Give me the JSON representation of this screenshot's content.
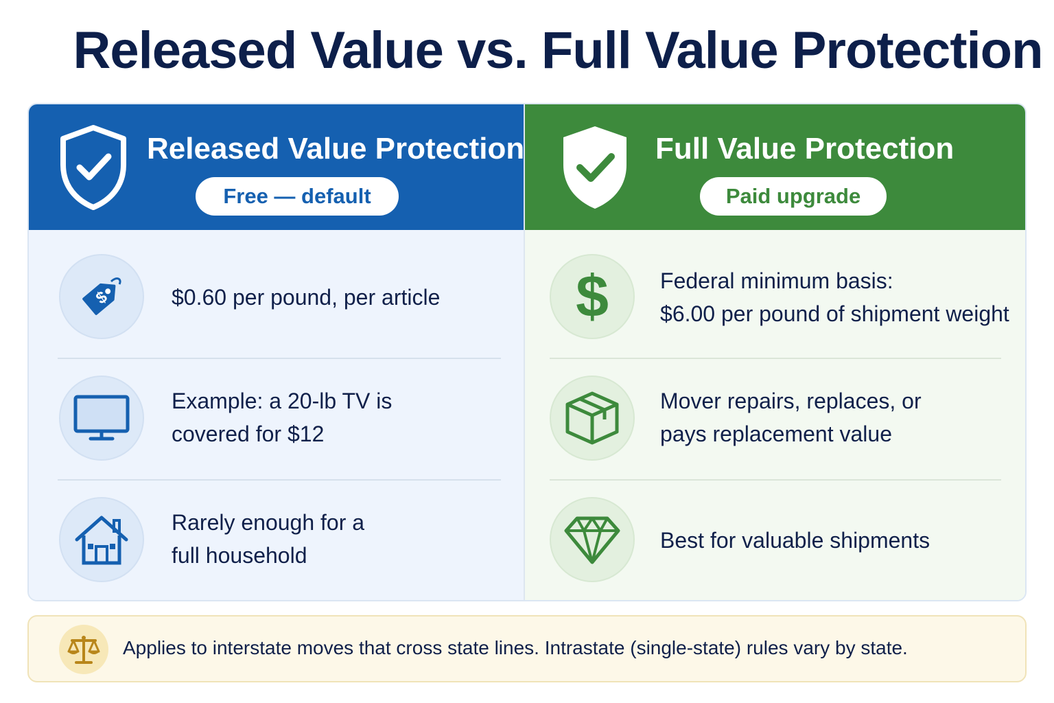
{
  "title": "Released Value vs. Full Value Protection",
  "colors": {
    "released_accent": "#1560b0",
    "full_accent": "#3d8a3c",
    "note_background": "#fdf8e8"
  },
  "released": {
    "title": "Released Value Protection",
    "badge": "Free — default",
    "icon": "shield-check-icon",
    "rows": [
      {
        "icon": "price-tag-icon",
        "text": "$0.60 per pound, per article"
      },
      {
        "icon": "tv-icon",
        "text_line1": "Example: a 20-lb TV is",
        "text_line2": "covered for $12"
      },
      {
        "icon": "house-icon",
        "text_line1": "Rarely enough for a",
        "text_line2": "full household"
      }
    ]
  },
  "full": {
    "title": "Full Value Protection",
    "badge": "Paid upgrade",
    "icon": "shield-check-icon",
    "rows": [
      {
        "icon": "dollar-icon",
        "text_line1": "Federal minimum basis:",
        "text_line2": "$6.00 per pound of shipment weight"
      },
      {
        "icon": "box-icon",
        "text_line1": "Mover repairs, replaces, or",
        "text_line2": "pays replacement value"
      },
      {
        "icon": "diamond-icon",
        "text": "Best for valuable shipments"
      }
    ]
  },
  "note": {
    "icon": "scales-icon",
    "text": "Applies to interstate moves that cross state lines. Intrastate (single-state) rules vary by state."
  }
}
